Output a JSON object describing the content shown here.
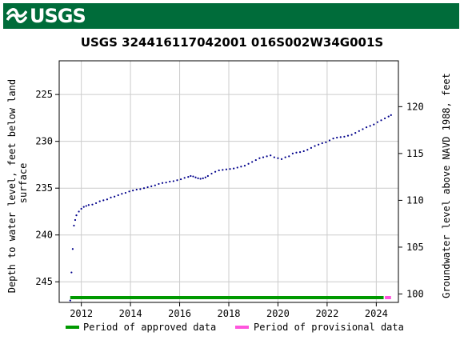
{
  "banner": {
    "agency": "USGS",
    "color": "#006c3a"
  },
  "chart_data": {
    "type": "scatter",
    "title": "USGS 324416117042001 016S002W34G001S",
    "ylabel_left": "Depth to water level, feet below land surface",
    "ylabel_left_lines": [
      "Depth to water level, feet below land",
      "surface"
    ],
    "ylabel_right": "Groundwater level above NAVD 1988, feet",
    "left_axis": {
      "ylim": [
        247.2,
        221.4
      ],
      "ticks": [
        225,
        230,
        235,
        240,
        245
      ],
      "inverted": true
    },
    "right_axis": {
      "ylim": [
        99.1,
        124.9
      ],
      "ticks": [
        100,
        105,
        110,
        115,
        120
      ]
    },
    "x_axis": {
      "xlim": [
        2011.1,
        2024.9
      ],
      "ticks": [
        2012,
        2014,
        2016,
        2018,
        2020,
        2022,
        2024
      ]
    },
    "grid": true,
    "series": [
      {
        "name": "Depth to water level",
        "color": "#00008b",
        "points": [
          [
            2011.55,
            247.0
          ],
          [
            2011.6,
            244.0
          ],
          [
            2011.65,
            241.5
          ],
          [
            2011.7,
            239.0
          ],
          [
            2011.75,
            238.4
          ],
          [
            2011.8,
            237.9
          ],
          [
            2011.9,
            237.5
          ],
          [
            2012.0,
            237.2
          ],
          [
            2012.1,
            237.0
          ],
          [
            2012.2,
            236.9
          ],
          [
            2012.3,
            236.8
          ],
          [
            2012.45,
            236.75
          ],
          [
            2012.6,
            236.6
          ],
          [
            2012.75,
            236.4
          ],
          [
            2012.9,
            236.3
          ],
          [
            2013.05,
            236.2
          ],
          [
            2013.2,
            236.0
          ],
          [
            2013.35,
            235.9
          ],
          [
            2013.5,
            235.75
          ],
          [
            2013.65,
            235.6
          ],
          [
            2013.8,
            235.5
          ],
          [
            2013.95,
            235.35
          ],
          [
            2014.1,
            235.25
          ],
          [
            2014.25,
            235.15
          ],
          [
            2014.4,
            235.1
          ],
          [
            2014.55,
            235.0
          ],
          [
            2014.7,
            234.9
          ],
          [
            2014.85,
            234.8
          ],
          [
            2015.0,
            234.7
          ],
          [
            2015.15,
            234.55
          ],
          [
            2015.3,
            234.45
          ],
          [
            2015.45,
            234.4
          ],
          [
            2015.6,
            234.3
          ],
          [
            2015.75,
            234.25
          ],
          [
            2015.9,
            234.15
          ],
          [
            2016.05,
            234.05
          ],
          [
            2016.2,
            233.9
          ],
          [
            2016.35,
            233.8
          ],
          [
            2016.45,
            233.7
          ],
          [
            2016.55,
            233.75
          ],
          [
            2016.65,
            233.85
          ],
          [
            2016.75,
            233.95
          ],
          [
            2016.85,
            234.0
          ],
          [
            2016.95,
            233.95
          ],
          [
            2017.05,
            233.85
          ],
          [
            2017.15,
            233.7
          ],
          [
            2017.3,
            233.45
          ],
          [
            2017.45,
            233.25
          ],
          [
            2017.6,
            233.1
          ],
          [
            2017.75,
            233.05
          ],
          [
            2017.9,
            233.0
          ],
          [
            2018.05,
            232.95
          ],
          [
            2018.2,
            232.9
          ],
          [
            2018.35,
            232.8
          ],
          [
            2018.5,
            232.7
          ],
          [
            2018.65,
            232.6
          ],
          [
            2018.8,
            232.4
          ],
          [
            2018.95,
            232.2
          ],
          [
            2019.1,
            232.0
          ],
          [
            2019.25,
            231.8
          ],
          [
            2019.4,
            231.7
          ],
          [
            2019.55,
            231.6
          ],
          [
            2019.7,
            231.5
          ],
          [
            2019.85,
            231.7
          ],
          [
            2020.0,
            231.8
          ],
          [
            2020.15,
            231.9
          ],
          [
            2020.3,
            231.7
          ],
          [
            2020.45,
            231.6
          ],
          [
            2020.6,
            231.3
          ],
          [
            2020.75,
            231.2
          ],
          [
            2020.9,
            231.15
          ],
          [
            2021.05,
            231.05
          ],
          [
            2021.2,
            230.9
          ],
          [
            2021.35,
            230.7
          ],
          [
            2021.5,
            230.5
          ],
          [
            2021.65,
            230.35
          ],
          [
            2021.8,
            230.2
          ],
          [
            2021.95,
            230.1
          ],
          [
            2022.1,
            229.9
          ],
          [
            2022.25,
            229.7
          ],
          [
            2022.4,
            229.6
          ],
          [
            2022.55,
            229.55
          ],
          [
            2022.7,
            229.5
          ],
          [
            2022.85,
            229.4
          ],
          [
            2023.0,
            229.3
          ],
          [
            2023.15,
            229.1
          ],
          [
            2023.3,
            228.9
          ],
          [
            2023.45,
            228.7
          ],
          [
            2023.6,
            228.5
          ],
          [
            2023.75,
            228.35
          ],
          [
            2023.9,
            228.2
          ],
          [
            2024.05,
            227.95
          ],
          [
            2024.2,
            227.75
          ],
          [
            2024.35,
            227.55
          ],
          [
            2024.5,
            227.35
          ],
          [
            2024.6,
            227.2
          ]
        ]
      }
    ],
    "periods": [
      {
        "name": "Period of approved data",
        "color": "#009900",
        "range": [
          2011.55,
          2024.3
        ]
      },
      {
        "name": "Period of provisional data",
        "color": "#ff55dd",
        "range": [
          2024.35,
          2024.6
        ]
      }
    ],
    "legend": {
      "placement": "bottom"
    }
  }
}
